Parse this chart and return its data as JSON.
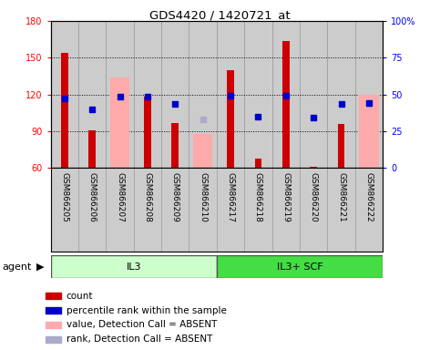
{
  "title": "GDS4420 / 1420721_at",
  "samples": [
    "GSM866205",
    "GSM866206",
    "GSM866207",
    "GSM866208",
    "GSM866209",
    "GSM866210",
    "GSM866217",
    "GSM866218",
    "GSM866219",
    "GSM866220",
    "GSM866221",
    "GSM866222"
  ],
  "ylim_left": [
    60,
    180
  ],
  "ylim_right": [
    0,
    100
  ],
  "yticks_left": [
    60,
    90,
    120,
    150,
    180
  ],
  "yticks_right": [
    0,
    25,
    50,
    75,
    100
  ],
  "yticklabels_right": [
    "0",
    "25",
    "50",
    "75",
    "100%"
  ],
  "red_bars": [
    154,
    91,
    null,
    118,
    97,
    null,
    140,
    68,
    164,
    61,
    96,
    null
  ],
  "pink_bars": [
    null,
    null,
    134,
    null,
    null,
    88,
    null,
    null,
    null,
    null,
    null,
    120
  ],
  "blue_squares_left_val": [
    117,
    108,
    118,
    118,
    112,
    null,
    119,
    102,
    119,
    101,
    112,
    113
  ],
  "light_blue_squares_left_val": [
    null,
    null,
    null,
    null,
    null,
    100,
    null,
    null,
    null,
    null,
    null,
    112
  ],
  "red_color": "#cc0000",
  "pink_color": "#ffaaaa",
  "blue_color": "#0000cc",
  "light_blue_color": "#aaaacc",
  "col_bg_color": "#cccccc",
  "il3_color": "#ccffcc",
  "scf_color": "#44dd44",
  "legend_items": [
    {
      "color": "#cc0000",
      "label": "count"
    },
    {
      "color": "#0000cc",
      "label": "percentile rank within the sample"
    },
    {
      "color": "#ffaaaa",
      "label": "value, Detection Call = ABSENT"
    },
    {
      "color": "#aaaacc",
      "label": "rank, Detection Call = ABSENT"
    }
  ]
}
